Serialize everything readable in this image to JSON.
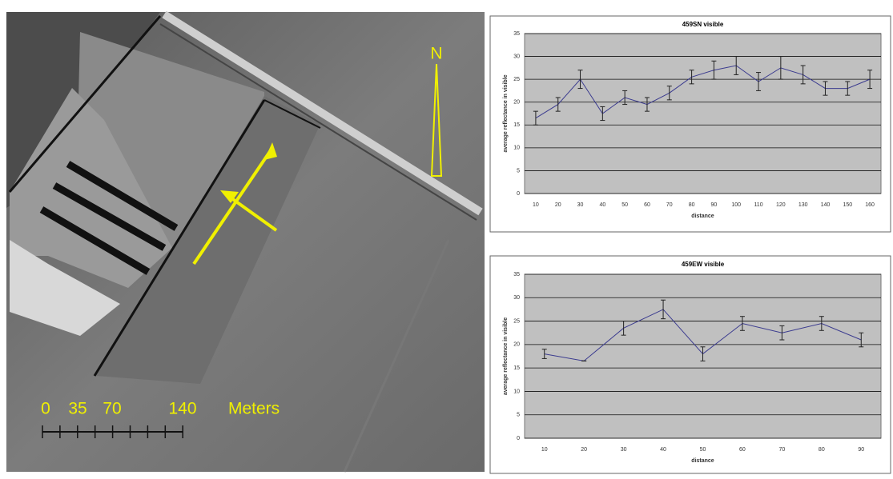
{
  "map": {
    "north": "N",
    "scale_labels": [
      "0",
      "35",
      "70",
      "140"
    ],
    "scale_unit": "Meters"
  },
  "chart_data": [
    {
      "type": "line",
      "title": "459SN visible",
      "x_label": "distance",
      "y_label": "average reflectance in visible",
      "categories": [
        "10",
        "20",
        "30",
        "40",
        "50",
        "60",
        "70",
        "80",
        "90",
        "100",
        "110",
        "120",
        "130",
        "140",
        "150",
        "160"
      ],
      "series": [
        {
          "color": "#3b3b8f",
          "values": [
            16.5,
            19.5,
            25,
            17.5,
            21,
            19.5,
            22,
            25.5,
            27,
            28,
            24.5,
            27.5,
            26,
            23,
            23,
            25
          ],
          "errors": [
            1.5,
            1.5,
            2,
            1.5,
            1.5,
            1.5,
            1.5,
            1.5,
            2,
            2,
            2,
            2.5,
            2,
            1.5,
            1.5,
            2
          ]
        }
      ],
      "ylim": [
        0,
        35
      ],
      "yticks": [
        0,
        5,
        10,
        15,
        20,
        25,
        30,
        35
      ],
      "grid": true
    },
    {
      "type": "line",
      "title": "459EW visible",
      "x_label": "distance",
      "y_label": "average reflectance in visible",
      "categories": [
        "10",
        "20",
        "30",
        "40",
        "50",
        "60",
        "70",
        "80",
        "90"
      ],
      "series": [
        {
          "color": "#3b3b8f",
          "values": [
            18,
            16.5,
            23.5,
            27.5,
            18,
            24.5,
            22.5,
            24.5,
            21
          ],
          "errors": [
            1,
            0,
            1.5,
            2,
            1.5,
            1.5,
            1.5,
            1.5,
            1.5
          ]
        }
      ],
      "ylim": [
        0,
        35
      ],
      "yticks": [
        0,
        5,
        10,
        15,
        20,
        25,
        30,
        35
      ],
      "grid": true
    }
  ]
}
